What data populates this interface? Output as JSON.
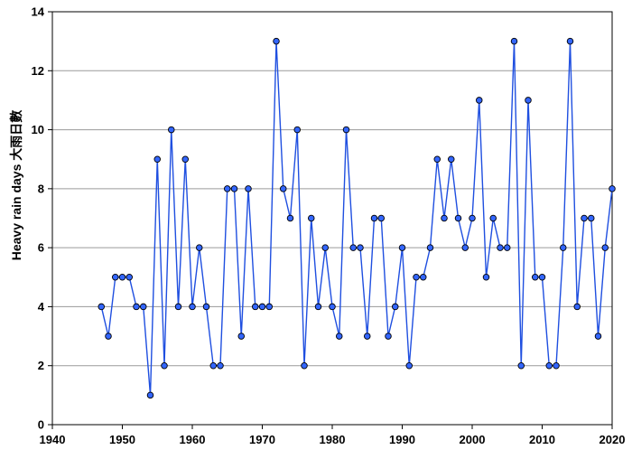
{
  "chart_data": {
    "type": "line",
    "title": "",
    "xlabel": "",
    "ylabel": "Heavy rain days 大雨日數",
    "xlim": [
      1940,
      2020
    ],
    "ylim": [
      0,
      14
    ],
    "xticks": [
      1940,
      1950,
      1960,
      1970,
      1980,
      1990,
      2000,
      2010,
      2020
    ],
    "yticks": [
      0,
      2,
      4,
      6,
      8,
      10,
      12,
      14
    ],
    "grid": "horizontal",
    "series": [
      {
        "color": "#1f4fe0",
        "marker_color": "#3366ff",
        "x": [
          1947,
          1948,
          1949,
          1950,
          1951,
          1952,
          1953,
          1954,
          1955,
          1956,
          1957,
          1958,
          1959,
          1960,
          1961,
          1962,
          1963,
          1964,
          1965,
          1966,
          1967,
          1968,
          1969,
          1970,
          1971,
          1972,
          1973,
          1974,
          1975,
          1976,
          1977,
          1978,
          1979,
          1980,
          1981,
          1982,
          1983,
          1984,
          1985,
          1986,
          1987,
          1988,
          1989,
          1990,
          1991,
          1992,
          1993,
          1994,
          1995,
          1996,
          1997,
          1998,
          1999,
          2000,
          2001,
          2002,
          2003,
          2004,
          2005,
          2006,
          2007,
          2008,
          2009,
          2010,
          2011,
          2012,
          2013,
          2014,
          2015,
          2016,
          2017,
          2018,
          2019,
          2020
        ],
        "y": [
          4,
          3,
          5,
          5,
          5,
          4,
          4,
          1,
          9,
          2,
          10,
          4,
          9,
          4,
          6,
          4,
          2,
          2,
          8,
          8,
          3,
          8,
          4,
          4,
          4,
          13,
          8,
          7,
          10,
          2,
          7,
          4,
          6,
          4,
          3,
          10,
          6,
          6,
          3,
          7,
          7,
          3,
          4,
          6,
          2,
          5,
          5,
          6,
          9,
          7,
          9,
          7,
          6,
          7,
          11,
          5,
          7,
          6,
          6,
          13,
          2,
          11,
          5,
          5,
          2,
          2,
          6,
          13,
          4,
          7,
          7,
          3,
          6,
          8
        ]
      }
    ]
  }
}
